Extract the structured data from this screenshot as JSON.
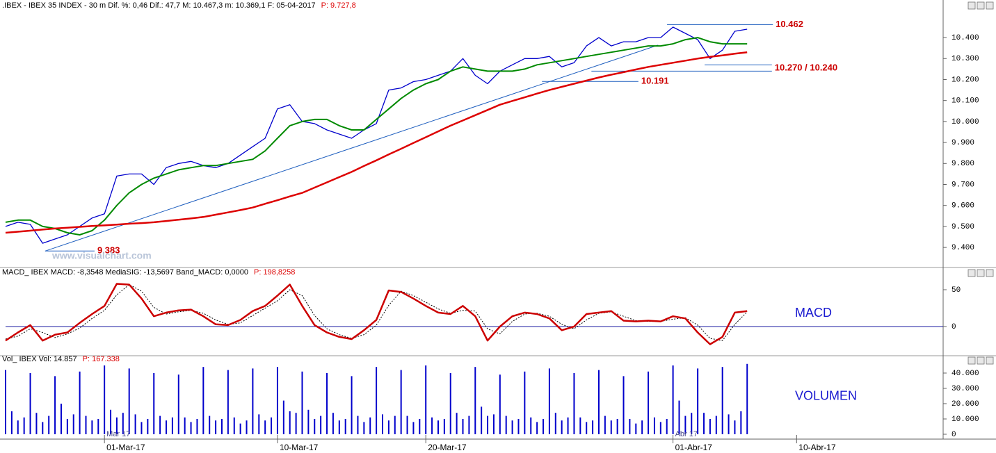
{
  "chart_data": [
    {
      "type": "line",
      "header": ".IBEX - IBEX 35 INDEX - 30 m  Dif. %: 0,46  Dif.: 47,7  M: 10.467,3  m: 10.369,1  F: 05-04-2017",
      "header_p": "P: 9.727,8",
      "watermark": "www.visualchart.com",
      "ylim": [
        9311,
        10526
      ],
      "yticks": [
        {
          "value": 9400,
          "label": "9.400"
        },
        {
          "value": 9500,
          "label": "9.500"
        },
        {
          "value": 9600,
          "label": "9.600"
        },
        {
          "value": 9700,
          "label": "9.700"
        },
        {
          "value": 9800,
          "label": "9.800"
        },
        {
          "value": 9900,
          "label": "9.900"
        },
        {
          "value": 10000,
          "label": "10.000"
        },
        {
          "value": 10100,
          "label": "10.100"
        },
        {
          "value": 10200,
          "label": "10.200"
        },
        {
          "value": 10300,
          "label": "10.300"
        },
        {
          "value": 10400,
          "label": "10.400"
        }
      ],
      "x": [
        0,
        0.5,
        1,
        1.5,
        2,
        2.5,
        3,
        3.5,
        4,
        4.5,
        5,
        5.5,
        6,
        6.5,
        7,
        7.5,
        8,
        8.5,
        9,
        9.5,
        10,
        10.5,
        11,
        11.5,
        12,
        12.5,
        13,
        13.5,
        14,
        14.5,
        15,
        15.5,
        16,
        16.5,
        17,
        17.5,
        18,
        18.5,
        19,
        19.5,
        20,
        20.5,
        21,
        21.5,
        22,
        22.5,
        23,
        23.5,
        24,
        24.5,
        25,
        25.5,
        26,
        26.5,
        27,
        27.5,
        28,
        28.5,
        29,
        29.5,
        30
      ],
      "series": [
        {
          "color": "#0000cc",
          "width": 1.3,
          "values": [
            9500,
            9520,
            9510,
            9420,
            9440,
            9460,
            9500,
            9540,
            9560,
            9740,
            9750,
            9750,
            9700,
            9780,
            9800,
            9810,
            9790,
            9780,
            9800,
            9840,
            9880,
            9920,
            10060,
            10080,
            10000,
            9990,
            9960,
            9940,
            9920,
            9960,
            9990,
            10150,
            10160,
            10190,
            10200,
            10220,
            10240,
            10300,
            10220,
            10180,
            10240,
            10270,
            10300,
            10300,
            10310,
            10260,
            10280,
            10360,
            10400,
            10360,
            10380,
            10380,
            10400,
            10400,
            10450,
            10420,
            10390,
            10300,
            10340,
            10430,
            10440
          ]
        },
        {
          "color": "#008a00",
          "width": 2,
          "values": [
            9520,
            9530,
            9530,
            9500,
            9490,
            9470,
            9460,
            9480,
            9530,
            9600,
            9660,
            9700,
            9730,
            9750,
            9770,
            9780,
            9790,
            9790,
            9800,
            9810,
            9820,
            9860,
            9920,
            9980,
            10000,
            10010,
            10010,
            9980,
            9960,
            9960,
            10010,
            10060,
            10110,
            10150,
            10180,
            10200,
            10240,
            10260,
            10250,
            10240,
            10240,
            10240,
            10250,
            10270,
            10280,
            10290,
            10300,
            10310,
            10320,
            10330,
            10340,
            10350,
            10360,
            10360,
            10370,
            10390,
            10400,
            10380,
            10370,
            10370,
            10370
          ]
        },
        {
          "color": "#dd0000",
          "width": 2.5,
          "values": [
            9470,
            9475,
            9480,
            9485,
            9490,
            9494,
            9498,
            9502,
            9505,
            9509,
            9513,
            9516,
            9520,
            9526,
            9532,
            9538,
            9545,
            9556,
            9567,
            9578,
            9590,
            9608,
            9625,
            9643,
            9660,
            9685,
            9710,
            9735,
            9760,
            9788,
            9815,
            9843,
            9870,
            9898,
            9925,
            9953,
            9980,
            10005,
            10030,
            10055,
            10080,
            10098,
            10115,
            10133,
            10150,
            10165,
            10180,
            10195,
            10210,
            10223,
            10235,
            10248,
            10260,
            10270,
            10280,
            10290,
            10300,
            10308,
            10315,
            10323,
            10330
          ]
        }
      ],
      "trendline": {
        "color": "#1f5fbf",
        "x": [
          1.6,
          26.4
        ],
        "values": [
          9383,
          10364
        ]
      },
      "levels": [
        {
          "label": "10.462",
          "lines": [
            {
              "value": 10462,
              "x": [
                26.76,
                31.04
              ]
            }
          ]
        },
        {
          "label": "10.270 / 10.240",
          "lines": [
            {
              "value": 10270,
              "x": [
                28.28,
                31
              ]
            },
            {
              "value": 10240,
              "x": [
                23.7,
                31
              ]
            }
          ]
        },
        {
          "label": "10.191",
          "lines": [
            {
              "value": 10191,
              "x": [
                21.7,
                25.6
              ]
            }
          ]
        },
        {
          "label": "9.383",
          "lines": [
            {
              "value": 9383,
              "x": [
                1.6,
                3.6
              ]
            }
          ]
        }
      ],
      "level_color": "#1f5fbf",
      "level_label_color": "#cc0000"
    },
    {
      "type": "line",
      "header": "MACD_ IBEX MACD: -8,3548  MediaSIG: -13,5697  Band_MACD: 0,0000",
      "header_p": "P: 198,8258",
      "label": "MACD",
      "ylim": [
        -37.7,
        67.9
      ],
      "yticks": [
        0,
        50
      ],
      "zero_line_color": "#1a1aa0",
      "x": [
        0,
        0.5,
        1,
        1.5,
        2,
        2.5,
        3,
        3.5,
        4,
        4.5,
        5,
        5.5,
        6,
        6.5,
        7,
        7.5,
        8,
        8.5,
        9,
        9.5,
        10,
        10.5,
        11,
        11.5,
        12,
        12.5,
        13,
        13.5,
        14,
        14.5,
        15,
        15.5,
        16,
        16.5,
        17,
        17.5,
        18,
        18.5,
        19,
        19.5,
        20,
        20.5,
        21,
        21.5,
        22,
        22.5,
        23,
        23.5,
        24,
        24.5,
        25,
        25.5,
        26,
        26.5,
        27,
        27.5,
        28,
        28.5,
        29,
        29.5,
        30
      ],
      "series": [
        {
          "color": "#000000",
          "width": 1,
          "dotted": true,
          "values": [
            -17,
            -13,
            -3,
            -8,
            -15,
            -10,
            -2,
            11,
            22,
            43,
            57,
            48,
            26,
            17,
            20,
            22,
            18,
            9,
            3,
            5,
            15,
            25,
            35,
            50,
            42,
            15,
            -3,
            -11,
            -16,
            -11,
            2,
            29,
            48,
            42,
            33,
            24,
            18,
            22,
            21,
            -3,
            -10,
            7,
            17,
            18,
            14,
            3,
            -3,
            9,
            18,
            20,
            14,
            8,
            7,
            7,
            10,
            12,
            2,
            -16,
            -19,
            3,
            20
          ]
        },
        {
          "color": "#cc0000",
          "width": 2.5,
          "values": [
            -19,
            -8,
            2,
            -19,
            -11,
            -8,
            5,
            17,
            28,
            58,
            57,
            38,
            14,
            19,
            22,
            23,
            14,
            3,
            2,
            9,
            21,
            28,
            42,
            57,
            28,
            2,
            -8,
            -14,
            -17,
            -5,
            9,
            49,
            47,
            38,
            28,
            19,
            17,
            28,
            14,
            -19,
            0,
            14,
            19,
            17,
            11,
            -5,
            0,
            17,
            19,
            21,
            8,
            7,
            8,
            7,
            14,
            11,
            -8,
            -24,
            -14,
            19,
            21
          ]
        }
      ]
    },
    {
      "type": "bar",
      "header": "Vol_ IBEX Vol: 14.857",
      "header_p": "P: 167.338",
      "label": "VOLUMEN",
      "color": "#0000cc",
      "ylim": [
        0,
        46800
      ],
      "yticks": [
        0,
        {
          "value": 10000,
          "label": "10.000"
        },
        {
          "value": 20000,
          "label": "20.000"
        },
        {
          "value": 30000,
          "label": "30.000"
        },
        {
          "value": 40000,
          "label": "40.000"
        }
      ],
      "xlim": [
        0,
        37.9
      ],
      "xticks": [
        {
          "value": 4,
          "label": "01-Mar-17"
        },
        {
          "value": 11,
          "label": "10-Mar-17"
        },
        {
          "value": 17,
          "label": "20-Mar-17"
        },
        {
          "value": 27,
          "label": "01-Abr-17"
        },
        {
          "value": 32,
          "label": "10-Abr-17"
        }
      ],
      "month_labels": [
        {
          "value": 4,
          "label": "Mar 17"
        },
        {
          "value": 27,
          "label": "Abr 17"
        }
      ],
      "x": [
        0,
        0.25,
        0.5,
        0.75,
        1,
        1.25,
        1.5,
        1.75,
        2,
        2.25,
        2.5,
        2.75,
        3,
        3.25,
        3.5,
        3.75,
        4,
        4.25,
        4.5,
        4.75,
        5,
        5.25,
        5.5,
        5.75,
        6,
        6.25,
        6.5,
        6.75,
        7,
        7.25,
        7.5,
        7.75,
        8,
        8.25,
        8.5,
        8.75,
        9,
        9.25,
        9.5,
        9.75,
        10,
        10.25,
        10.5,
        10.75,
        11,
        11.25,
        11.5,
        11.75,
        12,
        12.25,
        12.5,
        12.75,
        13,
        13.25,
        13.5,
        13.75,
        14,
        14.25,
        14.5,
        14.75,
        15,
        15.25,
        15.5,
        15.75,
        16,
        16.25,
        16.5,
        16.75,
        17,
        17.25,
        17.5,
        17.75,
        18,
        18.25,
        18.5,
        18.75,
        19,
        19.25,
        19.5,
        19.75,
        20,
        20.25,
        20.5,
        20.75,
        21,
        21.25,
        21.5,
        21.75,
        22,
        22.25,
        22.5,
        22.75,
        23,
        23.25,
        23.5,
        23.75,
        24,
        24.25,
        24.5,
        24.75,
        25,
        25.25,
        25.5,
        25.75,
        26,
        26.25,
        26.5,
        26.75,
        27,
        27.25,
        27.5,
        27.75,
        28,
        28.25,
        28.5,
        28.75,
        29,
        29.25,
        29.5,
        29.75,
        30
      ],
      "values": [
        42000,
        15000,
        9000,
        11000,
        40000,
        14000,
        8000,
        12000,
        38000,
        20000,
        10000,
        13000,
        41000,
        12000,
        9000,
        10000,
        45000,
        16000,
        11000,
        14000,
        43000,
        13000,
        8000,
        10000,
        40000,
        12000,
        9000,
        11000,
        39000,
        11000,
        8000,
        10000,
        44000,
        12000,
        9000,
        10000,
        42000,
        11000,
        7000,
        9000,
        43000,
        13000,
        9000,
        11000,
        44000,
        22000,
        15000,
        14000,
        41000,
        16000,
        10000,
        12000,
        40000,
        14000,
        9000,
        10000,
        38000,
        12000,
        8000,
        11000,
        44000,
        13000,
        9000,
        12000,
        42000,
        12000,
        8000,
        10000,
        45000,
        11000,
        9000,
        10000,
        40000,
        14000,
        10000,
        12000,
        44000,
        18000,
        12000,
        13000,
        39000,
        12000,
        9000,
        10000,
        41000,
        11000,
        8000,
        10000,
        43000,
        14000,
        9000,
        11000,
        40000,
        11000,
        8000,
        9000,
        42000,
        12000,
        9000,
        10000,
        38000,
        10000,
        7000,
        9000,
        41000,
        11000,
        8000,
        10000,
        45000,
        22000,
        12000,
        14000,
        43000,
        14000,
        10000,
        12000,
        44000,
        13000,
        9000,
        15000,
        46000
      ]
    }
  ]
}
